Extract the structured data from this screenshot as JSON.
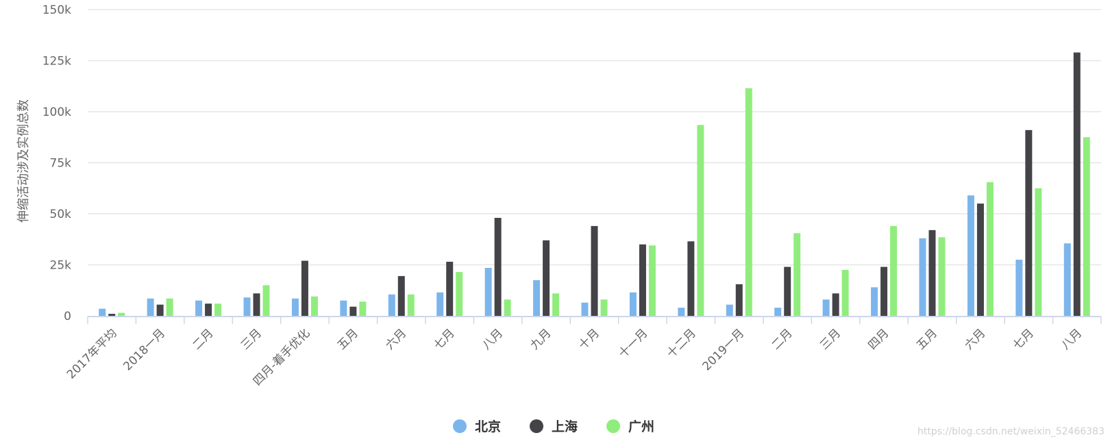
{
  "chart_data": {
    "type": "bar",
    "ylabel": "伸缩活动涉及实例总数",
    "ylim": [
      0,
      150000
    ],
    "yticks": [
      {
        "value": 0,
        "label": "0"
      },
      {
        "value": 25000,
        "label": "25k"
      },
      {
        "value": 50000,
        "label": "50k"
      },
      {
        "value": 75000,
        "label": "75k"
      },
      {
        "value": 100000,
        "label": "100k"
      },
      {
        "value": 125000,
        "label": "125k"
      },
      {
        "value": 150000,
        "label": "150k"
      }
    ],
    "categories": [
      "2017年平均",
      "2018一月",
      "二月",
      "三月",
      "四月-着手优化",
      "五月",
      "六月",
      "七月",
      "八月",
      "九月",
      "十月",
      "十一月",
      "十二月",
      "2019一月",
      "二月",
      "三月",
      "四月",
      "五月",
      "六月",
      "七月",
      "八月"
    ],
    "series": [
      {
        "name": "北京",
        "color": "#7cb5ec",
        "values": [
          3500,
          8500,
          7500,
          9000,
          8500,
          7500,
          10500,
          11500,
          23500,
          17500,
          6500,
          11500,
          4000,
          5500,
          4000,
          8000,
          14000,
          38000,
          59000,
          27500,
          35500
        ]
      },
      {
        "name": "上海",
        "color": "#434348",
        "values": [
          1000,
          5500,
          6000,
          11000,
          27000,
          4500,
          19500,
          26500,
          48000,
          37000,
          44000,
          35000,
          36500,
          15500,
          24000,
          11000,
          24000,
          42000,
          55000,
          91000,
          129000
        ]
      },
      {
        "name": "广州",
        "color": "#90ed7d",
        "values": [
          1500,
          8500,
          6000,
          15000,
          9500,
          7000,
          10500,
          21500,
          8000,
          11000,
          8000,
          34500,
          93500,
          111500,
          40500,
          22500,
          44000,
          38500,
          65500,
          62500,
          87500
        ]
      }
    ],
    "legend_position": "bottom-center",
    "grid": true
  },
  "watermark": "https://blog.csdn.net/weixin_52466383"
}
